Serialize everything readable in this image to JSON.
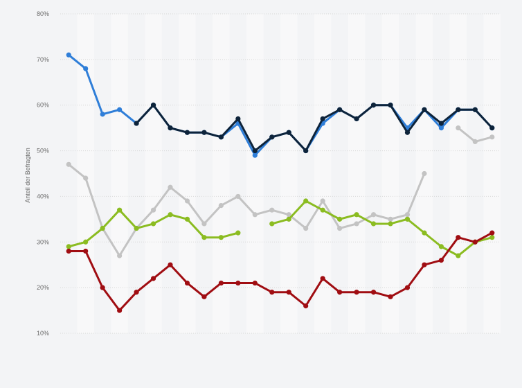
{
  "chart_data": {
    "type": "line",
    "ylabel": "Anteil der Befragten",
    "ylim": [
      10,
      80
    ],
    "yticks": [
      10,
      20,
      30,
      40,
      50,
      60,
      70,
      80
    ],
    "ytick_format": "%",
    "x_count": 26,
    "grid": "horizontal dotted, alternating column bands",
    "legend": "none",
    "series": [
      {
        "color": "#2f7ed8",
        "values": [
          71,
          68,
          58,
          59,
          56,
          60,
          55,
          54,
          54,
          53,
          56,
          49,
          53,
          54,
          50,
          56,
          59,
          57,
          60,
          60,
          55,
          59,
          55,
          59,
          59,
          55
        ]
      },
      {
        "color": "#0d233a",
        "values": [
          null,
          null,
          null,
          null,
          56,
          60,
          55,
          54,
          54,
          53,
          57,
          50,
          53,
          54,
          50,
          57,
          59,
          57,
          60,
          60,
          54,
          59,
          56,
          59,
          59,
          55
        ]
      },
      {
        "color": "#c3c3c3",
        "values": [
          47,
          44,
          33,
          27,
          33,
          37,
          42,
          39,
          34,
          38,
          40,
          36,
          37,
          36,
          33,
          39,
          33,
          34,
          36,
          35,
          36,
          45,
          null,
          55,
          52,
          53
        ]
      },
      {
        "color": "#8bbc21",
        "values": [
          29,
          30,
          33,
          37,
          33,
          34,
          36,
          35,
          31,
          31,
          32,
          null,
          34,
          35,
          39,
          37,
          35,
          36,
          34,
          34,
          35,
          32,
          29,
          27,
          30,
          31
        ]
      },
      {
        "color": "#a00d12",
        "values": [
          28,
          28,
          20,
          15,
          19,
          22,
          25,
          21,
          18,
          21,
          21,
          21,
          19,
          19,
          16,
          22,
          19,
          19,
          19,
          18,
          20,
          25,
          26,
          31,
          30,
          32
        ]
      }
    ]
  }
}
